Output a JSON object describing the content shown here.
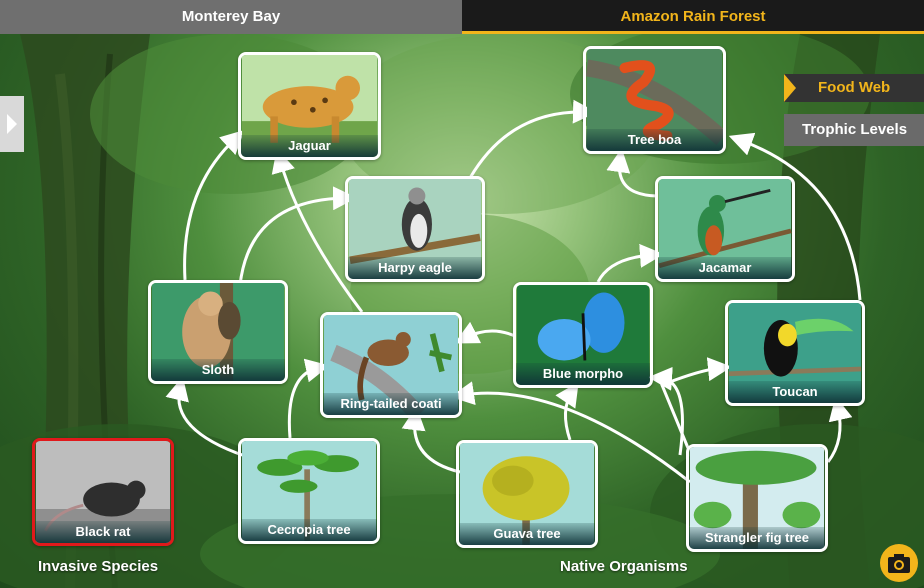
{
  "tabs": [
    {
      "label": "Monterey Bay",
      "active": false
    },
    {
      "label": "Amazon Rain Forest",
      "active": true
    }
  ],
  "side_panel": {
    "icon": "chevron-right-icon"
  },
  "view_buttons": {
    "food_web": "Food Web",
    "trophic_levels": "Trophic Levels"
  },
  "organisms": {
    "jaguar": "Jaguar",
    "tree_boa": "Tree boa",
    "harpy_eagle": "Harpy eagle",
    "jacamar": "Jacamar",
    "sloth": "Sloth",
    "ring_tailed_coati": "Ring-tailed coati",
    "blue_morpho": "Blue morpho",
    "toucan": "Toucan",
    "black_rat": "Black rat",
    "cecropia_tree": "Cecropia tree",
    "guava_tree": "Guava tree",
    "strangler_fig_tree": "Strangler fig tree"
  },
  "section_labels": {
    "invasive": "Invasive Species",
    "native": "Native Organisms"
  },
  "camera": {
    "icon": "camera-icon"
  },
  "colors": {
    "accent": "#f2b51b",
    "invasive_border": "#e0191b",
    "card_border": "#ffffff"
  }
}
